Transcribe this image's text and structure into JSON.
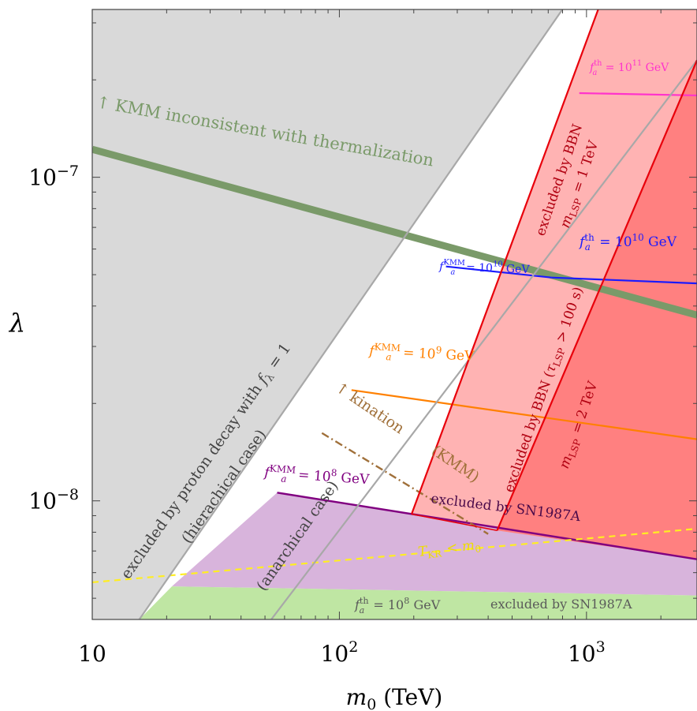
{
  "chart_data": {
    "type": "area",
    "title": "",
    "xlabel": "m_0 (TeV)",
    "ylabel": "λ",
    "xscale": "log",
    "yscale": "log",
    "xlim": [
      10,
      2800
    ],
    "ylim": [
      4.3e-09,
      3.3e-07
    ],
    "xticks": [
      {
        "value": 10,
        "label": "10"
      },
      {
        "value": 100,
        "label": "10",
        "sup": "2"
      },
      {
        "value": 1000,
        "label": "10",
        "sup": "3"
      }
    ],
    "yticks": [
      {
        "value": 1e-07,
        "label": "10",
        "sup": "−7"
      },
      {
        "value": 1e-08,
        "label": "10",
        "sup": "−8"
      }
    ],
    "grid": false,
    "colors": {
      "proton": "#d9d9d9",
      "sn_purple": "#d8b4dc",
      "sn_green": "#bfe6a3",
      "bbn1": "#ffb3b3",
      "bbn2": "#ff8080",
      "red_line": "#e8000b",
      "kmm_green": "#7a9a69",
      "fa_th_1e11": "#ff33cc",
      "fa_1e10": "#1a1aff",
      "fa_1e9": "#ff8000",
      "fa_1e8": "#800080",
      "kination": "#a0703a",
      "trh": "#ffee22",
      "gray_line": "#a8a8a8"
    },
    "regions": [
      {
        "name": "proton_decay_hierarchical",
        "polygon": [
          [
            10,
            4.3e-09
          ],
          [
            15.5,
            4.3e-09
          ],
          [
            799,
            3.3e-07
          ],
          [
            10,
            3.3e-07
          ]
        ]
      },
      {
        "name": "sn1987a_purple",
        "polygon": [
          [
            21,
            5.44e-09
          ],
          [
            56,
            1.06e-08
          ],
          [
            2800,
            6.6e-09
          ],
          [
            2800,
            5.1e-09
          ]
        ]
      },
      {
        "name": "sn1987a_green",
        "polygon": [
          [
            15.5,
            4.3e-09
          ],
          [
            21,
            5.44e-09
          ],
          [
            2800,
            5.1e-09
          ],
          [
            2800,
            4.3e-09
          ]
        ]
      },
      {
        "name": "bbn_1tev",
        "polygon": [
          [
            196,
            9.1e-09
          ],
          [
            1115,
            3.3e-07
          ],
          [
            2800,
            3.3e-07
          ],
          [
            2800,
            6.6e-09
          ]
        ]
      },
      {
        "name": "bbn_2tev",
        "polygon": [
          [
            435,
            8.1e-09
          ],
          [
            2800,
            2.3e-07
          ],
          [
            2800,
            6.6e-09
          ]
        ]
      }
    ],
    "series": [
      {
        "name": "KMM",
        "kind": "band",
        "x": [
          10,
          2800
        ],
        "y": [
          1.22e-07,
          3.75e-08
        ]
      },
      {
        "name": "f_a^th = 10^11 GeV",
        "x": [
          935,
          2800
        ],
        "y": [
          1.82e-07,
          1.79e-07
        ]
      },
      {
        "name": "f_a^th = 10^10 GeV",
        "x": [
          720,
          2800
        ],
        "y": [
          4.9e-08,
          4.7e-08
        ]
      },
      {
        "name": "f_a^KMM = 10^10 GeV",
        "x": [
          270,
          720
        ],
        "y": [
          5.3e-08,
          4.9e-08
        ]
      },
      {
        "name": "f_a^KMM = 10^9 GeV",
        "x": [
          112,
          2800
        ],
        "y": [
          2.2e-08,
          1.55e-08
        ]
      },
      {
        "name": "f_a^KMM = 10^8 GeV",
        "x": [
          56,
          2800
        ],
        "y": [
          1.06e-08,
          6.6e-09
        ]
      },
      {
        "name": "kination (KMM)",
        "x": [
          85,
          400
        ],
        "y": [
          1.62e-08,
          7.9e-09
        ]
      },
      {
        "name": "T_KR < m_0",
        "x": [
          10,
          2800
        ],
        "y": [
          5.6e-09,
          8.2e-09
        ]
      },
      {
        "name": "proton decay boundary (hierarchical)",
        "x": [
          15.5,
          799
        ],
        "y": [
          4.3e-09,
          3.3e-07
        ]
      },
      {
        "name": "proton decay boundary (anarchical)",
        "x": [
          53,
          2800
        ],
        "y": [
          4.3e-09,
          2.3e-07
        ]
      }
    ],
    "annotations": [
      {
        "id": "kmm",
        "text": "↑ KMM inconsistent with thermalization"
      },
      {
        "id": "fath11",
        "base": "f",
        "sub": "a",
        "sup": "th",
        "tail": " = 10",
        "tailsup": "11",
        "end": " GeV"
      },
      {
        "id": "fath10",
        "base": "f",
        "sub": "a",
        "sup": "th",
        "tail": " = 10",
        "tailsup": "10",
        "end": " GeV"
      },
      {
        "id": "fakmm10",
        "base": "f",
        "sub": "a",
        "sup": "KMM",
        "tail": " = 10",
        "tailsup": "10",
        "end": " GeV"
      },
      {
        "id": "fakmm9",
        "base": "f",
        "sub": "a",
        "sup": "KMM",
        "tail": " = 10",
        "tailsup": "9",
        "end": " GeV"
      },
      {
        "id": "fakmm8",
        "base": "f",
        "sub": "a",
        "sup": "KMM",
        "tail": " = 10",
        "tailsup": "8",
        "end": " GeV"
      },
      {
        "id": "fath8",
        "base": "f",
        "sub": "a",
        "sup": "th",
        "tail": " = 10",
        "tailsup": "8",
        "end": " GeV"
      },
      {
        "id": "bbn1a",
        "text": "excluded by BBN"
      },
      {
        "id": "bbn1b",
        "text": "m_LSP = 1 TeV"
      },
      {
        "id": "bbn2a",
        "text": "excluded by BBN (τ_LSP > 100 s)"
      },
      {
        "id": "bbn2b",
        "text": "m_LSP = 2 TeV"
      },
      {
        "id": "protonA",
        "text": "excluded by proton decay with f_λ = 1"
      },
      {
        "id": "protonB",
        "text": "(hierachical case)"
      },
      {
        "id": "anarchical",
        "text": "(anarchical case)"
      },
      {
        "id": "kination",
        "text": "↑ kination"
      },
      {
        "id": "kmmParen",
        "text": "(KMM)"
      },
      {
        "id": "sn1",
        "text": "excluded by SN1987A"
      },
      {
        "id": "sn2",
        "text": "excluded by SN1987A"
      },
      {
        "id": "trh",
        "text": "T_KR < m_0"
      }
    ]
  }
}
